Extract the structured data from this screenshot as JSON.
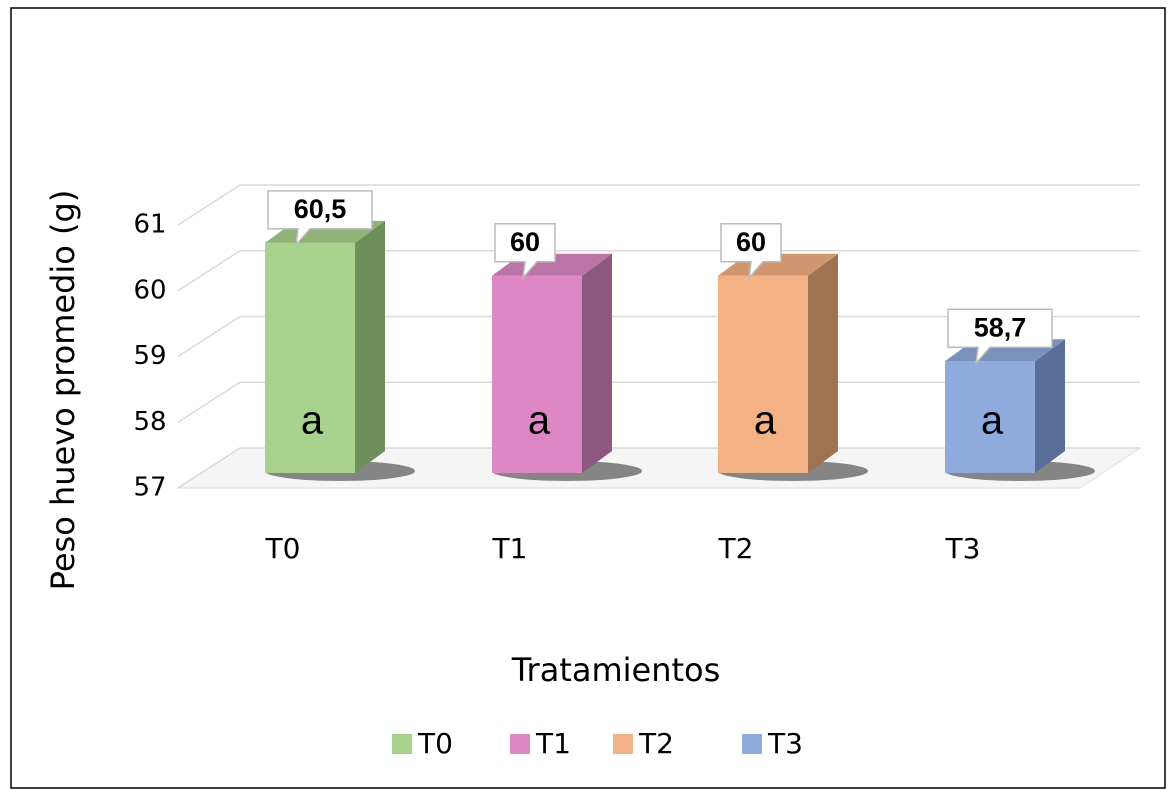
{
  "chart_data": {
    "type": "bar3d",
    "y_label": "Peso huevo promedio (g)",
    "x_label": "Tratamientos",
    "categories": [
      "T0",
      "T1",
      "T2",
      "T3"
    ],
    "values": [
      60.5,
      60,
      60,
      58.7
    ],
    "value_labels": [
      "60,5",
      "60",
      "60",
      "58,7"
    ],
    "annotations": [
      "a",
      "a",
      "a",
      "a"
    ],
    "colors": [
      "#a9d18e",
      "#dd88c4",
      "#f4b183",
      "#8faadc"
    ],
    "side_colors": [
      "#6e8f5a",
      "#8d587f",
      "#9e7352",
      "#5a6e9a"
    ],
    "ylim": [
      57,
      61
    ],
    "yticks": [
      57,
      58,
      59,
      60,
      61
    ],
    "grid": true,
    "legend": "bottom"
  }
}
